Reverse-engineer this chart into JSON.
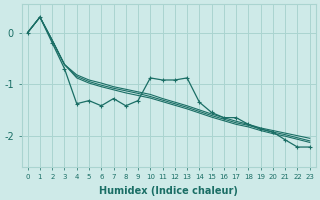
{
  "xlabel": "Humidex (Indice chaleur)",
  "bg_color": "#ceeae8",
  "grid_color": "#aad4d0",
  "line_color": "#1a6e65",
  "xlim": [
    -0.5,
    23.5
  ],
  "ylim": [
    -2.6,
    0.55
  ],
  "yticks": [
    0,
    -1,
    -2
  ],
  "xticks": [
    0,
    1,
    2,
    3,
    4,
    5,
    6,
    7,
    8,
    9,
    10,
    11,
    12,
    13,
    14,
    15,
    16,
    17,
    18,
    19,
    20,
    21,
    22,
    23
  ],
  "smooth_series": [
    [
      0,
      0.3,
      -0.15,
      -0.62,
      -0.82,
      -0.92,
      -0.98,
      -1.05,
      -1.1,
      -1.15,
      -1.2,
      -1.28,
      -1.35,
      -1.42,
      -1.5,
      -1.58,
      -1.65,
      -1.72,
      -1.78,
      -1.85,
      -1.9,
      -1.95,
      -2.0,
      -2.05
    ],
    [
      0,
      0.3,
      -0.15,
      -0.62,
      -0.85,
      -0.95,
      -1.02,
      -1.08,
      -1.13,
      -1.18,
      -1.24,
      -1.31,
      -1.38,
      -1.45,
      -1.53,
      -1.61,
      -1.68,
      -1.75,
      -1.8,
      -1.87,
      -1.93,
      -1.98,
      -2.04,
      -2.1
    ],
    [
      0,
      0.3,
      -0.15,
      -0.62,
      -0.88,
      -0.98,
      -1.05,
      -1.11,
      -1.17,
      -1.22,
      -1.27,
      -1.34,
      -1.41,
      -1.48,
      -1.56,
      -1.64,
      -1.71,
      -1.78,
      -1.83,
      -1.9,
      -1.96,
      -2.01,
      -2.07,
      -2.13
    ]
  ],
  "zigzag_series_x": [
    0,
    1,
    2,
    3,
    4,
    5,
    6,
    7,
    8,
    9,
    10,
    11,
    12,
    13,
    14,
    15,
    16,
    17,
    18,
    19,
    20,
    21,
    22,
    23
  ],
  "zigzag_series_y": [
    0.0,
    0.3,
    -0.2,
    -0.7,
    -1.38,
    -1.32,
    -1.42,
    -1.28,
    -1.42,
    -1.32,
    -0.88,
    -0.92,
    -0.92,
    -0.88,
    -1.35,
    -1.55,
    -1.65,
    -1.65,
    -1.78,
    -1.87,
    -1.93,
    -2.08,
    -2.22,
    -2.22
  ]
}
